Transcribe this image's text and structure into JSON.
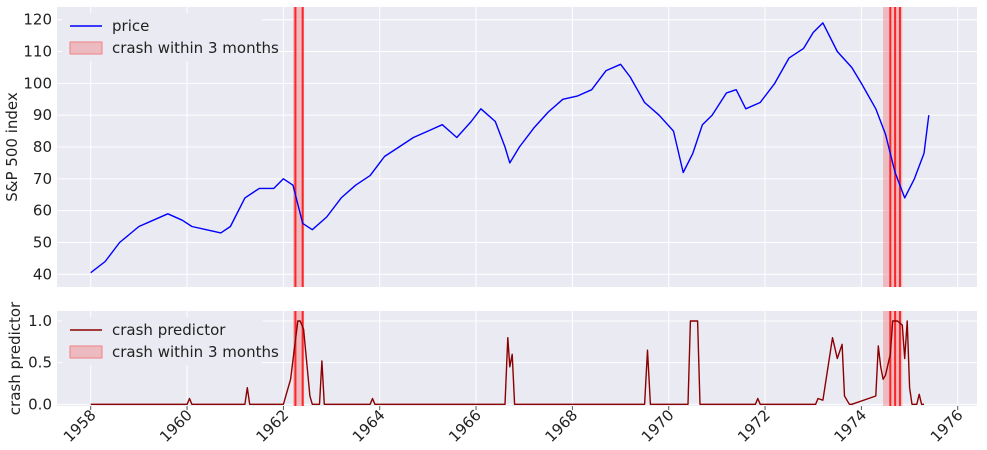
{
  "chart_data": [
    {
      "id": "price-panel",
      "type": "line",
      "ylabel": "S&P 500 index",
      "ylim": [
        36,
        124
      ],
      "yticks": [
        40,
        50,
        60,
        70,
        80,
        90,
        100,
        110,
        120
      ],
      "grid": true,
      "legend_position": "top-left",
      "legend": [
        {
          "name": "price",
          "kind": "line",
          "color": "#0000ff"
        },
        {
          "name": "crash within 3 months",
          "kind": "patch",
          "color": "#f08080"
        }
      ],
      "series": [
        {
          "name": "price",
          "color": "#0000ff",
          "x": [
            1958.0,
            1958.3,
            1958.6,
            1959.0,
            1959.3,
            1959.6,
            1959.9,
            1960.1,
            1960.4,
            1960.7,
            1960.9,
            1961.2,
            1961.5,
            1961.8,
            1962.0,
            1962.2,
            1962.4,
            1962.6,
            1962.9,
            1963.2,
            1963.5,
            1963.8,
            1964.1,
            1964.4,
            1964.7,
            1965.0,
            1965.3,
            1965.6,
            1965.9,
            1966.1,
            1966.4,
            1966.6,
            1966.7,
            1966.9,
            1967.2,
            1967.5,
            1967.8,
            1968.1,
            1968.4,
            1968.7,
            1969.0,
            1969.2,
            1969.5,
            1969.8,
            1970.1,
            1970.3,
            1970.5,
            1970.7,
            1970.9,
            1971.2,
            1971.4,
            1971.6,
            1971.9,
            1972.2,
            1972.5,
            1972.8,
            1973.0,
            1973.2,
            1973.5,
            1973.8,
            1974.0,
            1974.3,
            1974.5,
            1974.7,
            1974.9,
            1975.1,
            1975.3,
            1975.4
          ],
          "y": [
            40.5,
            44,
            50,
            55,
            57,
            59,
            57,
            55,
            54,
            53,
            55,
            64,
            67,
            67,
            70,
            68,
            56,
            54,
            58,
            64,
            68,
            71,
            77,
            80,
            83,
            85,
            87,
            83,
            88,
            92,
            88,
            80,
            75,
            80,
            86,
            91,
            95,
            96,
            98,
            104,
            106,
            102,
            94,
            90,
            85,
            72,
            78,
            87,
            90,
            97,
            98,
            92,
            94,
            100,
            108,
            111,
            116,
            119,
            110,
            105,
            100,
            92,
            84,
            72,
            64,
            70,
            78,
            90
          ]
        }
      ],
      "shaded_bands": [
        [
          1962.2,
          1962.43
        ],
        [
          1974.45,
          1974.85
        ]
      ],
      "vertical_lines": [
        1962.25,
        1962.4,
        1974.6,
        1974.7,
        1974.8
      ]
    },
    {
      "id": "predictor-panel",
      "type": "line",
      "ylabel": "crash predictor",
      "ylim": [
        -0.02,
        1.12
      ],
      "yticks": [
        0.0,
        0.5,
        1.0
      ],
      "ytick_labels": [
        "0.0",
        "0.5",
        "1.0"
      ],
      "xlim": [
        1957.3,
        1976.4
      ],
      "xticks": [
        1958,
        1960,
        1962,
        1964,
        1966,
        1968,
        1970,
        1972,
        1974,
        1976
      ],
      "grid": true,
      "legend_position": "top-left",
      "legend": [
        {
          "name": "crash predictor",
          "kind": "line",
          "color": "#8b0000"
        },
        {
          "name": "crash within 3 months",
          "kind": "patch",
          "color": "#f08080"
        }
      ],
      "series": [
        {
          "name": "crash predictor",
          "color": "#8b0000",
          "x": [
            1958.0,
            1960.0,
            1960.05,
            1960.1,
            1961.2,
            1961.25,
            1961.3,
            1962.0,
            1962.15,
            1962.3,
            1962.35,
            1962.42,
            1962.55,
            1962.6,
            1962.75,
            1962.8,
            1962.85,
            1963.8,
            1963.85,
            1963.9,
            1966.6,
            1966.66,
            1966.7,
            1966.75,
            1966.8,
            1969.5,
            1969.56,
            1969.62,
            1970.4,
            1970.45,
            1970.6,
            1970.65,
            1971.8,
            1971.85,
            1971.9,
            1973.05,
            1973.1,
            1973.2,
            1973.4,
            1973.5,
            1973.6,
            1973.65,
            1973.75,
            1973.8,
            1974.3,
            1974.35,
            1974.4,
            1974.45,
            1974.5,
            1974.6,
            1974.65,
            1974.75,
            1974.85,
            1974.9,
            1974.95,
            1975.0,
            1975.05,
            1975.1,
            1975.15,
            1975.2,
            1975.25,
            1975.3
          ],
          "y": [
            0,
            0,
            0.07,
            0,
            0,
            0.2,
            0,
            0,
            0.3,
            1,
            1,
            0.9,
            0.1,
            0,
            0,
            0.52,
            0,
            0,
            0.07,
            0,
            0,
            0.8,
            0.45,
            0.6,
            0,
            0,
            0.65,
            0,
            0,
            1,
            1,
            0,
            0,
            0.07,
            0,
            0,
            0.07,
            0.05,
            0.8,
            0.55,
            0.72,
            0.1,
            0,
            0,
            0.1,
            0.7,
            0.45,
            0.3,
            0.35,
            0.6,
            1,
            1,
            0.95,
            0.55,
            1,
            0.2,
            0,
            0,
            0,
            0.12,
            0,
            0
          ]
        }
      ],
      "shaded_bands": [
        [
          1962.2,
          1962.43
        ],
        [
          1974.45,
          1974.85
        ]
      ],
      "vertical_lines": [
        1962.25,
        1962.4,
        1974.6,
        1974.7,
        1974.8
      ]
    }
  ]
}
